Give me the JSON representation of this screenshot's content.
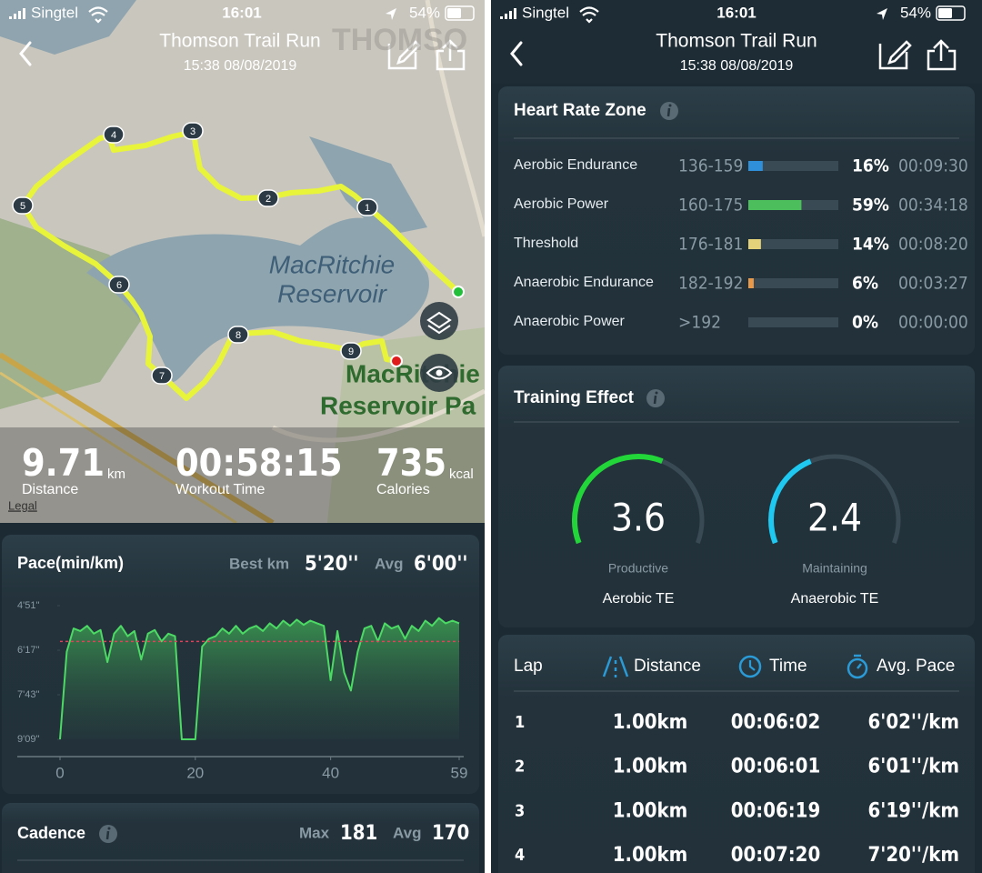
{
  "status": {
    "carrier": "Singtel",
    "time": "16:01",
    "battery": "54%"
  },
  "header": {
    "title": "Thomson Trail Run",
    "subtitle": "15:38 08/08/2019"
  },
  "left": {
    "map": {
      "labels": [
        "MacRitchie",
        "Reservoir",
        "MacRitchie",
        "Reservoir Pa",
        "THOMSO",
        "Legal"
      ],
      "markers": [
        "1",
        "2",
        "3",
        "4",
        "5",
        "6",
        "7",
        "8",
        "9"
      ]
    },
    "stats": [
      {
        "value": "9.71",
        "unit": "km",
        "label": "Distance"
      },
      {
        "value": "00:58:15",
        "label": "Workout Time"
      },
      {
        "value": "735",
        "unit": "kcal",
        "label": "Calories"
      }
    ],
    "pace": {
      "title": "Pace(min/km)",
      "best_label": "Best km",
      "best": "5'20''",
      "avg_label": "Avg",
      "avg": "6'00''",
      "chart": {
        "type": "line",
        "inverted": true,
        "color": "#4cd964",
        "avg_line": 360,
        "avg_line_color": "#e0405a",
        "x": [
          0,
          1,
          2,
          3,
          4,
          5,
          6,
          7,
          8,
          9,
          10,
          11,
          12,
          13,
          14,
          15,
          16,
          17,
          18,
          19,
          20,
          21,
          22,
          23,
          24,
          25,
          26,
          27,
          28,
          29,
          30,
          31,
          32,
          33,
          34,
          35,
          36,
          37,
          38,
          39,
          40,
          41,
          42,
          43,
          44,
          45,
          46,
          47,
          48,
          49,
          50,
          51,
          52,
          53,
          54,
          55,
          56,
          57,
          58,
          59
        ],
        "values": [
          549,
          380,
          335,
          340,
          330,
          345,
          338,
          400,
          345,
          330,
          350,
          340,
          395,
          345,
          338,
          360,
          345,
          350,
          549,
          549,
          549,
          370,
          355,
          350,
          335,
          345,
          330,
          345,
          335,
          330,
          340,
          325,
          335,
          320,
          330,
          318,
          328,
          320,
          325,
          330,
          435,
          340,
          420,
          455,
          380,
          335,
          330,
          360,
          325,
          335,
          330,
          355,
          330,
          340,
          320,
          330,
          315,
          325,
          320,
          325
        ],
        "xlim": [
          0,
          59
        ],
        "xticks": [
          0,
          20,
          40,
          59
        ],
        "ylim": [
          291,
          549
        ],
        "yticks": [
          {
            "value": 291,
            "label": "4'51''"
          },
          {
            "value": 377,
            "label": "6'17''"
          },
          {
            "value": 463,
            "label": "7'43''"
          },
          {
            "value": 549,
            "label": "9'09''"
          }
        ]
      }
    },
    "cadence": {
      "title": "Cadence",
      "max_label": "Max",
      "max": "181",
      "avg_label": "Avg",
      "avg": "170"
    }
  },
  "right": {
    "heart_rate": {
      "title": "Heart Rate Zone",
      "rows": [
        {
          "name": "Aerobic Endurance",
          "range": "136-159",
          "value": 16,
          "label": "16%",
          "time": "00:09:30",
          "color": "#2f8fd8"
        },
        {
          "name": "Aerobic Power",
          "range": "160-175",
          "value": 59,
          "label": "59%",
          "time": "00:34:18",
          "color": "#4cbf5c"
        },
        {
          "name": "Threshold",
          "range": "176-181",
          "value": 14,
          "label": "14%",
          "time": "00:08:20",
          "color": "#e3d27a"
        },
        {
          "name": "Anaerobic Endurance",
          "range": "182-192",
          "value": 6,
          "label": "6%",
          "time": "00:03:27",
          "color": "#e89a4a"
        },
        {
          "name": "Anaerobic Power",
          "range": ">192",
          "value": 0,
          "label": "0%",
          "time": "00:00:00",
          "color": "#e0405a"
        }
      ]
    },
    "training": {
      "title": "Training Effect",
      "gauge_max": 6,
      "gauges": [
        {
          "value": 3.6,
          "status": "Productive",
          "label": "Aerobic TE",
          "color": "#22d63a"
        },
        {
          "value": 2.4,
          "status": "Maintaining",
          "label": "Anaerobic TE",
          "color": "#1ec8f0"
        }
      ]
    },
    "laps": {
      "headers": [
        "Lap",
        "Distance",
        "Time",
        "Avg. Pace"
      ],
      "rows": [
        [
          "1",
          "1.00km",
          "00:06:02",
          "6'02''/km"
        ],
        [
          "2",
          "1.00km",
          "00:06:01",
          "6'01''/km"
        ],
        [
          "3",
          "1.00km",
          "00:06:19",
          "6'19''/km"
        ],
        [
          "4",
          "1.00km",
          "00:07:20",
          "7'20''/km"
        ]
      ]
    }
  }
}
